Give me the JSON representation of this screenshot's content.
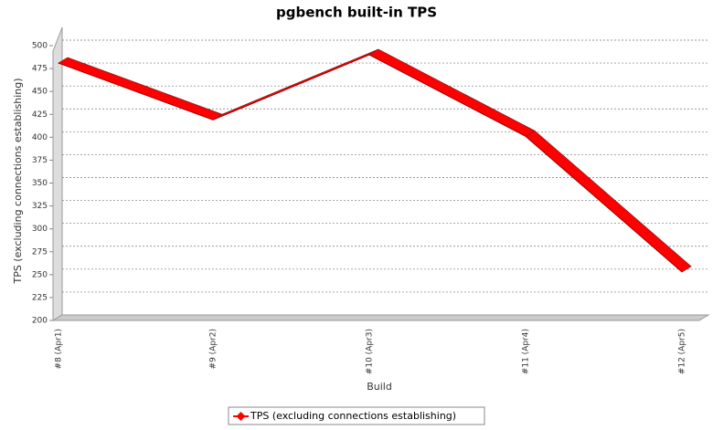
{
  "chart_data": {
    "type": "line3d",
    "title": "pgbench built-in TPS",
    "x_label": "Build",
    "y_label": "TPS (excluding connections establishing)",
    "categories": [
      "#8 (Apr1)",
      "#9 (Apr2)",
      "#10 (Apr3)",
      "#11 (Apr4)",
      "#12 (Apr5)"
    ],
    "series": [
      {
        "name": "TPS (excluding connections establishing)",
        "color": "#ff0000",
        "values": [
          481,
          419,
          490,
          401,
          253
        ]
      }
    ],
    "ylim": [
      200,
      500
    ],
    "yticks": [
      200,
      225,
      250,
      275,
      300,
      325,
      350,
      375,
      400,
      425,
      450,
      475,
      500
    ],
    "grid": true,
    "legend": "bottom"
  }
}
